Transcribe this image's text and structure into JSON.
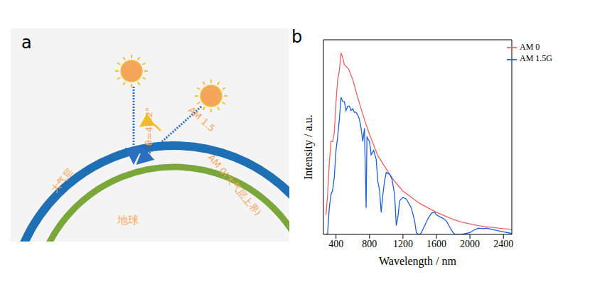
{
  "diagram": {
    "panel_label": "a",
    "labels": {
      "angle": "θ=48.2°",
      "am15": "AM 1.5",
      "am0": "AM 0(大气层上界)",
      "atmosphere": "大气层",
      "earth": "地球"
    }
  },
  "chart_data": {
    "panel_label": "b",
    "type": "line",
    "x_label": "Wavelength / nm",
    "y_label": "Intensity / a.u.",
    "xlim": [
      250,
      2500
    ],
    "xticks": [
      400,
      800,
      1200,
      1600,
      2000,
      2400
    ],
    "ylim": [
      0,
      2.2
    ],
    "tick_labels": "x",
    "legend": "upper right",
    "series": [
      {
        "name": "AM 0",
        "color": "#f06060",
        "x": [
          280,
          300,
          320,
          340,
          360,
          380,
          400,
          420,
          440,
          460,
          480,
          500,
          550,
          600,
          650,
          700,
          750,
          800,
          900,
          1000,
          1100,
          1200,
          1300,
          1400,
          1500,
          1600,
          1700,
          1800,
          1900,
          2000,
          2100,
          2200,
          2300,
          2400,
          2500
        ],
        "values": [
          0.22,
          0.45,
          0.8,
          1.05,
          1.05,
          1.15,
          1.5,
          1.75,
          1.85,
          2.05,
          2.0,
          1.92,
          1.87,
          1.75,
          1.58,
          1.42,
          1.27,
          1.13,
          0.89,
          0.74,
          0.6,
          0.49,
          0.42,
          0.35,
          0.3,
          0.25,
          0.21,
          0.17,
          0.14,
          0.12,
          0.1,
          0.085,
          0.075,
          0.065,
          0.058
        ]
      },
      {
        "name": "AM 1.5G",
        "color": "#1f5fd6",
        "x": [
          280,
          300,
          320,
          340,
          360,
          380,
          400,
          420,
          440,
          460,
          480,
          500,
          520,
          540,
          560,
          580,
          600,
          620,
          640,
          660,
          680,
          700,
          720,
          740,
          760,
          770,
          800,
          820,
          850,
          880,
          900,
          920,
          940,
          960,
          980,
          1000,
          1040,
          1070,
          1100,
          1120,
          1140,
          1160,
          1200,
          1240,
          1270,
          1300,
          1340,
          1360,
          1380,
          1400,
          1420,
          1460,
          1500,
          1540,
          1580,
          1600,
          1640,
          1680,
          1720,
          1760,
          1800,
          1820,
          1850,
          1900,
          1950,
          2000,
          2050,
          2100,
          2150,
          2200,
          2250,
          2300,
          2350,
          2400,
          2450,
          2500
        ],
        "values": [
          0,
          0.01,
          0.3,
          0.45,
          0.5,
          0.65,
          0.95,
          1.1,
          1.3,
          1.55,
          1.5,
          1.5,
          1.4,
          1.45,
          1.45,
          1.4,
          1.42,
          1.38,
          1.38,
          1.35,
          1.3,
          1.2,
          1.05,
          1.2,
          0.3,
          1.1,
          1.05,
          0.9,
          0.95,
          0.85,
          0.6,
          0.5,
          0.25,
          0.45,
          0.6,
          0.7,
          0.68,
          0.62,
          0.45,
          0.1,
          0.2,
          0.38,
          0.42,
          0.4,
          0.35,
          0.3,
          0.15,
          0.02,
          0,
          0,
          0.02,
          0.1,
          0.18,
          0.24,
          0.25,
          0.22,
          0.2,
          0.18,
          0.15,
          0.08,
          0.02,
          0,
          0,
          0,
          0.01,
          0.02,
          0.05,
          0.07,
          0.065,
          0.07,
          0.06,
          0.05,
          0.04,
          0.03,
          0.02,
          0.01
        ]
      }
    ]
  }
}
